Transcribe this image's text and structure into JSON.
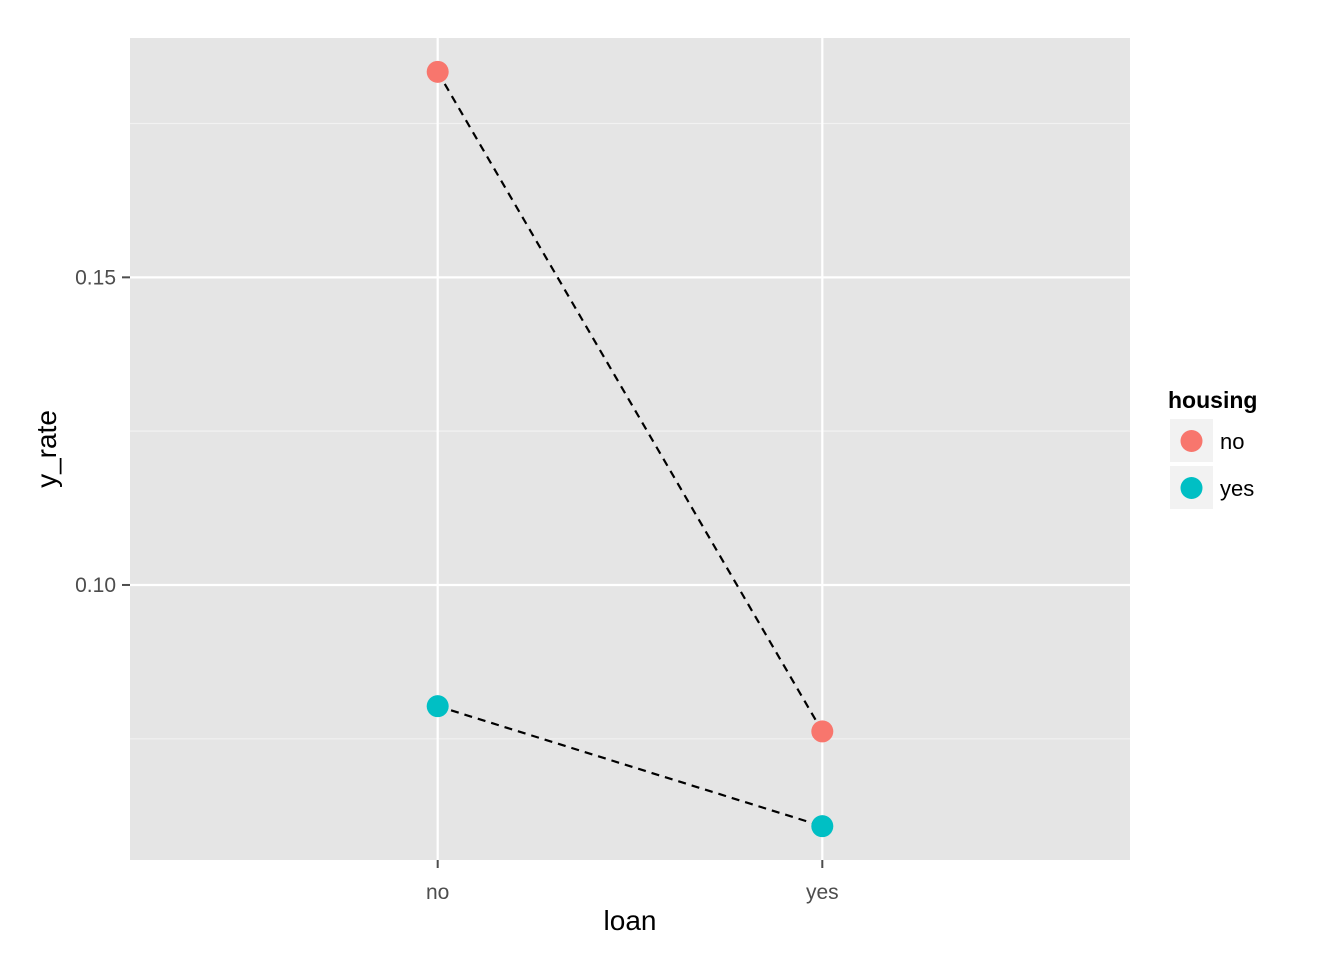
{
  "chart_data": {
    "type": "line",
    "xlabel": "loan",
    "ylabel": "y_rate",
    "categories": [
      "no",
      "yes"
    ],
    "ylim": [
      0.0553,
      0.1889
    ],
    "yticks": [
      0.1,
      0.15
    ],
    "ytick_labels": [
      "0.10",
      "0.15"
    ],
    "grid": true,
    "legend": {
      "title": "housing",
      "position": "right"
    },
    "series": [
      {
        "name": "no",
        "color": "#F8766D",
        "values": [
          0.1834,
          0.0762
        ]
      },
      {
        "name": "yes",
        "color": "#00BFC4",
        "values": [
          0.0803,
          0.0608
        ]
      }
    ],
    "line_style": "dashed",
    "line_color": "#000000",
    "panel_color": "#E5E5E5",
    "grid_color": "#FFFFFF"
  }
}
